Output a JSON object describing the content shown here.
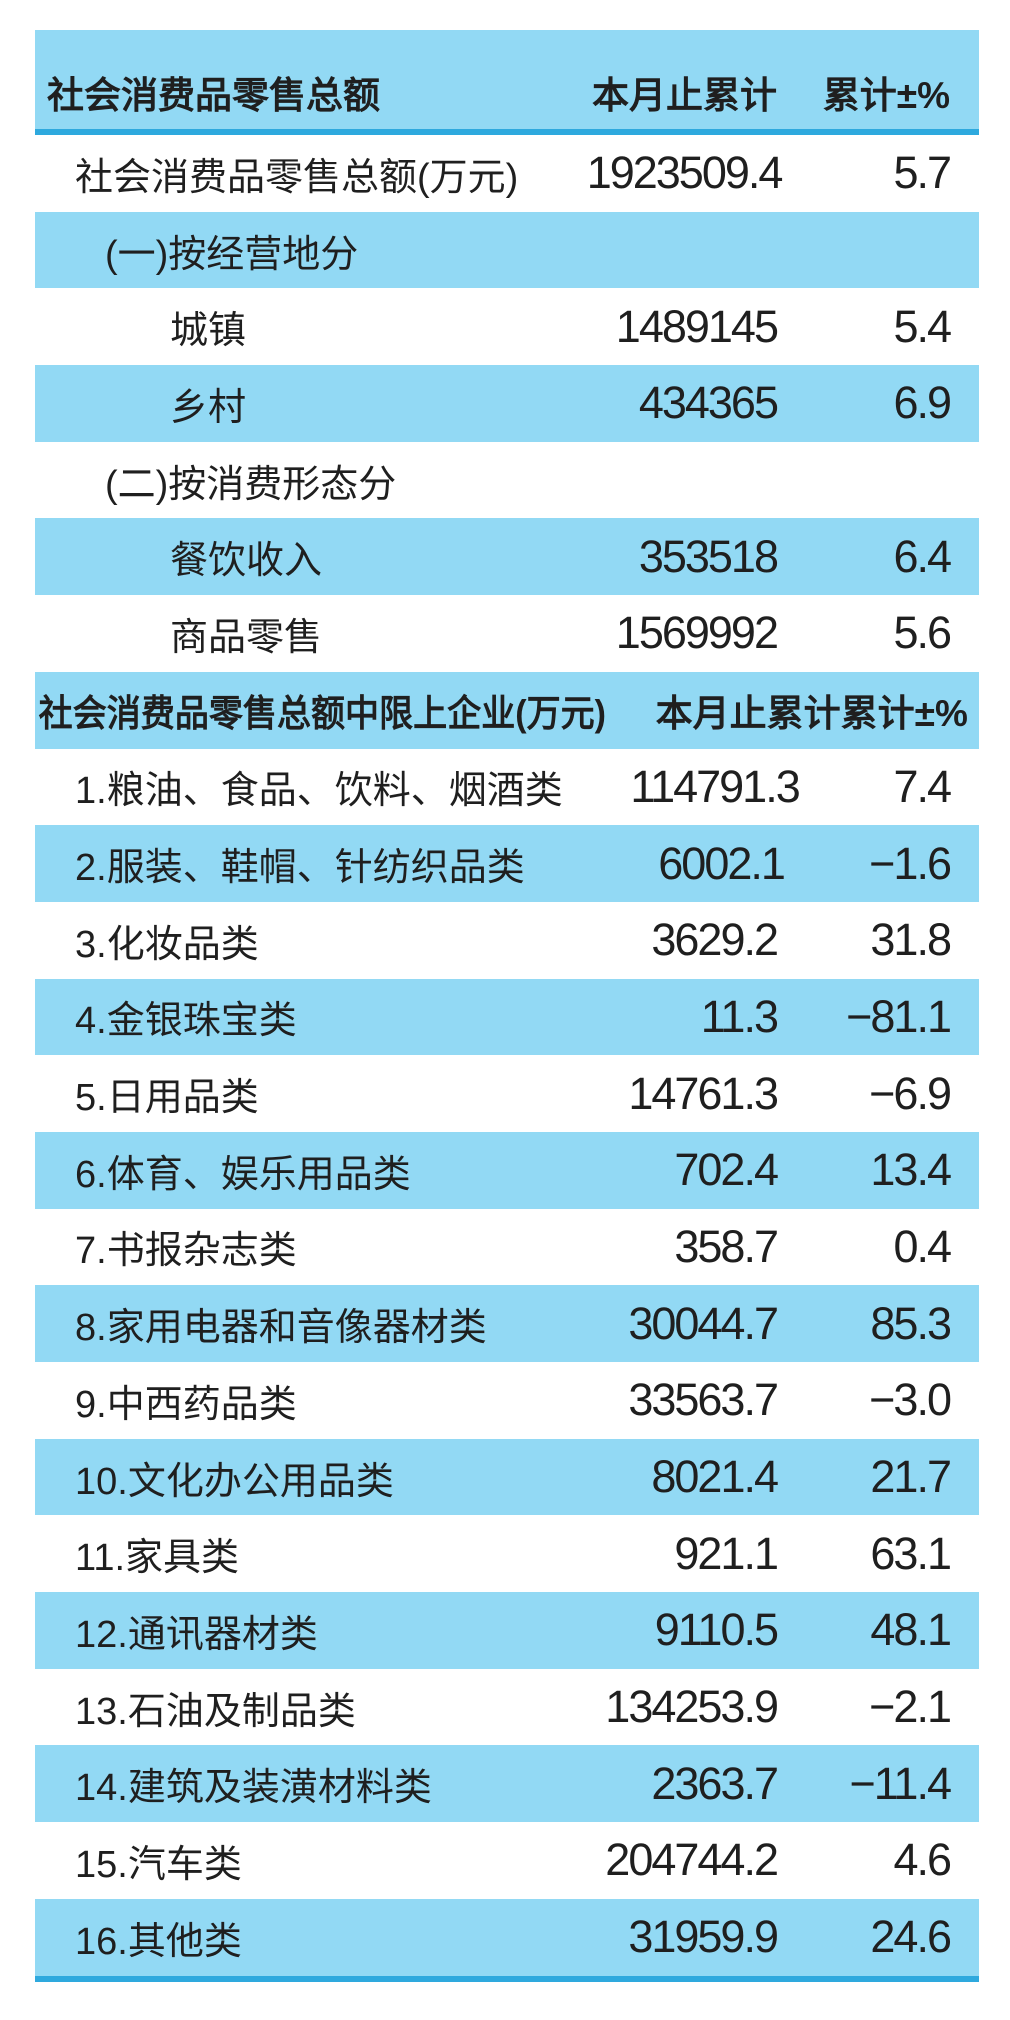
{
  "colors": {
    "row_blue": "#92D9F4",
    "divider_blue": "#2EA9DE",
    "text_black": "#1F1F1F"
  },
  "chart_data": {
    "type": "table",
    "columns": [
      "",
      "本月止累计",
      "累计±%"
    ],
    "sections": [
      {
        "header": "社会消费品零售总额",
        "rows": [
          {
            "label": "社会消费品零售总额(万元)",
            "cumulative": "1923509.4",
            "pct": "5.7",
            "indent": 1
          },
          {
            "label": "(一)按经营地分",
            "cumulative": "",
            "pct": "",
            "indent": 2
          },
          {
            "label": "城镇",
            "cumulative": "1489145",
            "pct": "5.4",
            "indent": 3
          },
          {
            "label": "乡村",
            "cumulative": "434365",
            "pct": "6.9",
            "indent": 3
          },
          {
            "label": "(二)按消费形态分",
            "cumulative": "",
            "pct": "",
            "indent": 2
          },
          {
            "label": "餐饮收入",
            "cumulative": "353518",
            "pct": "6.4",
            "indent": 3
          },
          {
            "label": "商品零售",
            "cumulative": "1569992",
            "pct": "5.6",
            "indent": 3
          }
        ]
      },
      {
        "header": "社会消费品零售总额中限上企业(万元)",
        "rows": [
          {
            "label": "1.粮油、食品、饮料、烟酒类",
            "cumulative": "114791.3",
            "pct": "7.4",
            "indent": 1
          },
          {
            "label": "2.服装、鞋帽、针纺织品类",
            "cumulative": "6002.1",
            "pct": "−1.6",
            "indent": 1
          },
          {
            "label": "3.化妆品类",
            "cumulative": "3629.2",
            "pct": "31.8",
            "indent": 1
          },
          {
            "label": "4.金银珠宝类",
            "cumulative": "11.3",
            "pct": "−81.1",
            "indent": 1
          },
          {
            "label": "5.日用品类",
            "cumulative": "14761.3",
            "pct": "−6.9",
            "indent": 1
          },
          {
            "label": "6.体育、娱乐用品类",
            "cumulative": "702.4",
            "pct": "13.4",
            "indent": 1
          },
          {
            "label": "7.书报杂志类",
            "cumulative": "358.7",
            "pct": "0.4",
            "indent": 1
          },
          {
            "label": "8.家用电器和音像器材类",
            "cumulative": "30044.7",
            "pct": "85.3",
            "indent": 1
          },
          {
            "label": "9.中西药品类",
            "cumulative": "33563.7",
            "pct": "−3.0",
            "indent": 1
          },
          {
            "label": "10.文化办公用品类",
            "cumulative": "8021.4",
            "pct": "21.7",
            "indent": 1
          },
          {
            "label": "11.家具类",
            "cumulative": "921.1",
            "pct": "63.1",
            "indent": 1
          },
          {
            "label": "12.通讯器材类",
            "cumulative": "9110.5",
            "pct": "48.1",
            "indent": 1
          },
          {
            "label": "13.石油及制品类",
            "cumulative": "134253.9",
            "pct": "−2.1",
            "indent": 1
          },
          {
            "label": "14.建筑及装潢材料类",
            "cumulative": "2363.7",
            "pct": "−11.4",
            "indent": 1
          },
          {
            "label": "15.汽车类",
            "cumulative": "204744.2",
            "pct": "4.6",
            "indent": 1
          },
          {
            "label": "16.其他类",
            "cumulative": "31959.9",
            "pct": "24.6",
            "indent": 1
          }
        ]
      }
    ]
  }
}
